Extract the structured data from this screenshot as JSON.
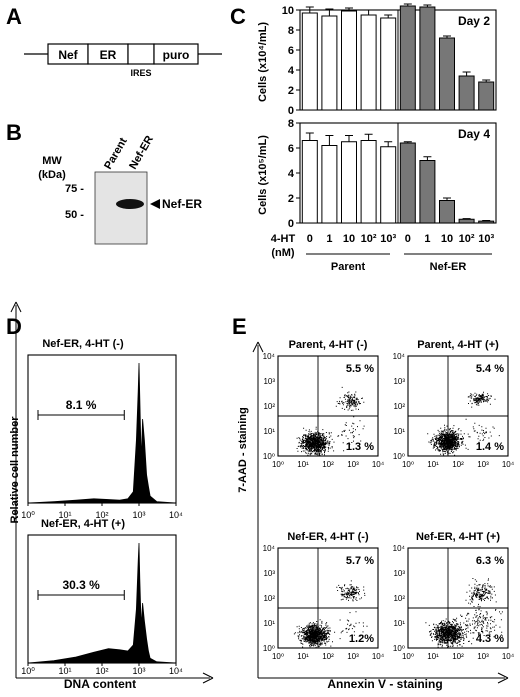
{
  "panels": {
    "A": {
      "label": "A",
      "construct": [
        "Nef",
        "ER",
        "puro"
      ],
      "ires": "IRES"
    },
    "B": {
      "label": "B",
      "mw_title": [
        "MW",
        "(kDa)"
      ],
      "lanes": [
        "Parent",
        "Nef-ER"
      ],
      "markers": [
        {
          "label": "75 -",
          "kda": 75
        },
        {
          "label": "50 -",
          "kda": 50
        }
      ],
      "band_label": "Nef-ER",
      "band_kda": 60
    },
    "C": {
      "label": "C",
      "x_label": [
        "4-HT",
        "(nM)"
      ],
      "tick_labels": [
        "0",
        "1",
        "10",
        "10²",
        "10³",
        "0",
        "1",
        "10",
        "10²",
        "10³"
      ],
      "groups": [
        "Parent",
        "Nef-ER"
      ]
    },
    "D": {
      "label": "D",
      "ylabel": "Relative cell number",
      "xlabel": "DNA content",
      "x_ticks": [
        "10⁰",
        "10¹",
        "10²",
        "10³",
        "10⁴"
      ]
    },
    "E": {
      "label": "E",
      "ylabel": "7-AAD - staining",
      "xlabel": "Annexin V - staining",
      "ticks": [
        "10⁰",
        "10¹",
        "10²",
        "10³",
        "10⁴"
      ]
    }
  },
  "chart_data": [
    {
      "type": "bar",
      "panel": "C",
      "subtitle": "Day 2",
      "ylabel": "Cells (x10⁴/mL)",
      "ylim": [
        0,
        10
      ],
      "yticks": [
        0,
        2,
        4,
        6,
        8,
        10
      ],
      "categories": [
        "0",
        "1",
        "10",
        "10²",
        "10³"
      ],
      "series": [
        {
          "name": "Parent",
          "color": "#ffffff",
          "values": [
            9.7,
            9.4,
            9.9,
            9.5,
            9.2
          ],
          "errors": [
            0.6,
            0.7,
            0.3,
            0.5,
            0.3
          ]
        },
        {
          "name": "Nef-ER",
          "color": "#777777",
          "values": [
            10.4,
            10.3,
            7.2,
            3.4,
            2.8
          ],
          "errors": [
            0.2,
            0.2,
            0.2,
            0.4,
            0.2
          ]
        }
      ]
    },
    {
      "type": "bar",
      "panel": "C",
      "subtitle": "Day 4",
      "ylabel": "Cells (x10⁵/mL)",
      "ylim": [
        0,
        8
      ],
      "yticks": [
        0,
        2,
        4,
        6,
        8
      ],
      "categories": [
        "0",
        "1",
        "10",
        "10²",
        "10³"
      ],
      "series": [
        {
          "name": "Parent",
          "color": "#ffffff",
          "values": [
            6.6,
            6.2,
            6.5,
            6.6,
            6.1
          ],
          "errors": [
            0.6,
            0.8,
            0.5,
            0.5,
            0.4
          ]
        },
        {
          "name": "Nef-ER",
          "color": "#777777",
          "values": [
            6.4,
            5.0,
            1.8,
            0.3,
            0.15
          ],
          "errors": [
            0.1,
            0.3,
            0.2,
            0.05,
            0.05
          ]
        }
      ]
    },
    {
      "type": "area",
      "panel": "D",
      "subtitle": "Nef-ER, 4-HT (-)",
      "gate_percent": "8.1 %",
      "x_scale": "log",
      "xlim": [
        1,
        10000
      ],
      "x": [
        1,
        5,
        20,
        60,
        150,
        300,
        500,
        700,
        850,
        950,
        1000,
        1050,
        1150,
        1250,
        1400,
        1600,
        1800,
        2000,
        3000,
        10000
      ],
      "y": [
        0,
        0.01,
        0.02,
        0.03,
        0.025,
        0.02,
        0.03,
        0.08,
        0.45,
        0.8,
        1.0,
        0.75,
        0.3,
        0.6,
        0.45,
        0.2,
        0.12,
        0.05,
        0.01,
        0
      ]
    },
    {
      "type": "area",
      "panel": "D",
      "subtitle": "Nef-ER, 4-HT (+)",
      "gate_percent": "30.3 %",
      "x_scale": "log",
      "xlim": [
        1,
        10000
      ],
      "x": [
        1,
        5,
        20,
        60,
        150,
        300,
        500,
        700,
        850,
        950,
        1000,
        1050,
        1150,
        1250,
        1400,
        1600,
        1800,
        2000,
        3000,
        10000
      ],
      "y": [
        0,
        0.02,
        0.05,
        0.09,
        0.12,
        0.11,
        0.1,
        0.15,
        0.45,
        0.85,
        1.0,
        0.7,
        0.3,
        0.5,
        0.35,
        0.2,
        0.1,
        0.04,
        0.01,
        0
      ]
    },
    {
      "type": "scatter",
      "panel": "E",
      "subtitle": "Parent, 4-HT (-)",
      "x_scale": "log",
      "y_scale": "log",
      "xlim": [
        1,
        10000
      ],
      "ylim": [
        1,
        10000
      ],
      "quadrant_ur": "5.5 %",
      "quadrant_lr": "1.3 %",
      "populations": [
        {
          "name": "live",
          "cx": 1.45,
          "cy": 0.55,
          "sx": 0.25,
          "sy": 0.2,
          "n": 900
        },
        {
          "name": "late",
          "cx": 2.9,
          "cy": 2.2,
          "sx": 0.22,
          "sy": 0.15,
          "n": 150
        },
        {
          "name": "early",
          "cx": 2.9,
          "cy": 0.9,
          "sx": 0.35,
          "sy": 0.25,
          "n": 40
        }
      ]
    },
    {
      "type": "scatter",
      "panel": "E",
      "subtitle": "Parent, 4-HT (+)",
      "x_scale": "log",
      "y_scale": "log",
      "xlim": [
        1,
        10000
      ],
      "ylim": [
        1,
        10000
      ],
      "quadrant_ur": "5.4 %",
      "quadrant_lr": "1.4 %",
      "populations": [
        {
          "name": "live",
          "cx": 1.55,
          "cy": 0.6,
          "sx": 0.25,
          "sy": 0.2,
          "n": 900
        },
        {
          "name": "late",
          "cx": 2.9,
          "cy": 2.3,
          "sx": 0.2,
          "sy": 0.12,
          "n": 140
        },
        {
          "name": "early",
          "cx": 2.9,
          "cy": 0.9,
          "sx": 0.35,
          "sy": 0.25,
          "n": 40
        }
      ]
    },
    {
      "type": "scatter",
      "panel": "E",
      "subtitle": "Nef-ER, 4-HT (-)",
      "x_scale": "log",
      "y_scale": "log",
      "xlim": [
        1,
        10000
      ],
      "ylim": [
        1,
        10000
      ],
      "quadrant_ur": "5.7 %",
      "quadrant_lr": "1.2%",
      "populations": [
        {
          "name": "live",
          "cx": 1.45,
          "cy": 0.55,
          "sx": 0.25,
          "sy": 0.2,
          "n": 900
        },
        {
          "name": "late",
          "cx": 2.85,
          "cy": 2.2,
          "sx": 0.22,
          "sy": 0.15,
          "n": 150
        },
        {
          "name": "early",
          "cx": 2.9,
          "cy": 0.9,
          "sx": 0.35,
          "sy": 0.25,
          "n": 35
        }
      ]
    },
    {
      "type": "scatter",
      "panel": "E",
      "subtitle": "Nef-ER, 4-HT (+)",
      "x_scale": "log",
      "y_scale": "log",
      "xlim": [
        1,
        10000
      ],
      "ylim": [
        1,
        10000
      ],
      "quadrant_ur": "6.3 %",
      "quadrant_lr": "4.3 %",
      "populations": [
        {
          "name": "live",
          "cx": 1.6,
          "cy": 0.6,
          "sx": 0.3,
          "sy": 0.22,
          "n": 900
        },
        {
          "name": "late",
          "cx": 2.9,
          "cy": 2.2,
          "sx": 0.25,
          "sy": 0.2,
          "n": 170
        },
        {
          "name": "early",
          "cx": 2.8,
          "cy": 1.0,
          "sx": 0.4,
          "sy": 0.3,
          "n": 150
        }
      ]
    }
  ]
}
